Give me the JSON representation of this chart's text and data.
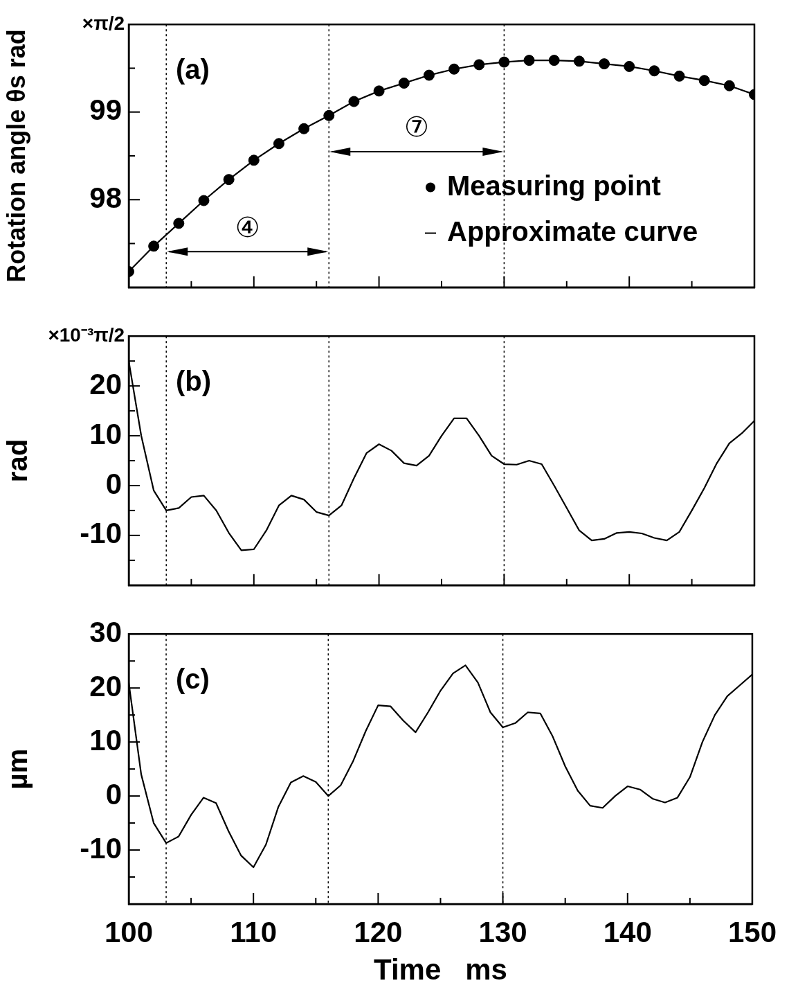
{
  "chart_data": [
    {
      "type": "line",
      "ylabel": "Rotation angle θs rad",
      "annotations": [
        "(a)",
        "×π/2",
        "④",
        "⑦"
      ],
      "series": [
        {
          "name": "Measuring point",
          "type": "scatter",
          "color": "#000000",
          "x": [
            100,
            102,
            104,
            106,
            108,
            110,
            112,
            114,
            116,
            118,
            120,
            122,
            124,
            126,
            128,
            130,
            132,
            134,
            136,
            138,
            140,
            142,
            144,
            146,
            148,
            150
          ],
          "values": [
            97.18,
            97.47,
            97.73,
            97.99,
            98.23,
            98.45,
            98.64,
            98.81,
            98.96,
            99.12,
            99.24,
            99.33,
            99.42,
            99.49,
            99.54,
            99.57,
            99.59,
            99.59,
            99.58,
            99.55,
            99.52,
            99.47,
            99.41,
            99.36,
            99.3,
            99.2
          ]
        },
        {
          "name": "Approximate curve",
          "color": "#000000",
          "x": [
            100,
            102,
            104,
            106,
            108,
            110,
            112,
            114,
            116,
            118,
            120,
            122,
            124,
            126,
            128,
            130,
            132,
            134,
            136,
            138,
            140,
            142,
            144,
            146,
            148,
            150
          ],
          "values": [
            97.18,
            97.47,
            97.73,
            97.99,
            98.23,
            98.45,
            98.64,
            98.81,
            98.96,
            99.12,
            99.24,
            99.33,
            99.42,
            99.49,
            99.54,
            99.57,
            99.59,
            99.59,
            99.58,
            99.55,
            99.52,
            99.47,
            99.41,
            99.36,
            99.3,
            99.2
          ]
        }
      ],
      "legend": "right",
      "grid": false,
      "tick_labels": "y",
      "xlim": [
        100,
        150
      ],
      "xticks": [
        100,
        {
          "value": 105,
          "label": null
        },
        110,
        {
          "value": 115,
          "label": null
        },
        120,
        {
          "value": 125,
          "label": null
        },
        130,
        {
          "value": 135,
          "label": null
        },
        140,
        {
          "value": 145,
          "label": null
        },
        150
      ],
      "ylim": [
        97,
        100
      ],
      "yticks": [
        {
          "value": 97.5,
          "label": null
        },
        98,
        {
          "value": 98.5,
          "label": null
        },
        99,
        {
          "value": 99.5,
          "label": null
        }
      ],
      "ref_lines": [
        {
          "axis": "x",
          "value": 103,
          "line_style": "dotted"
        },
        {
          "axis": "x",
          "value": 116,
          "line_style": "dotted"
        },
        {
          "axis": "x",
          "value": 130,
          "line_style": "dotted"
        }
      ]
    },
    {
      "type": "line",
      "ylabel": "rad",
      "annotations": [
        "(b)",
        "×10⁻³π/2"
      ],
      "x": [
        100,
        101,
        102,
        103,
        104,
        105,
        106,
        107,
        108,
        109,
        110,
        111,
        112,
        113,
        114,
        115,
        116,
        117,
        118,
        119,
        120,
        121,
        122,
        123,
        124,
        125,
        126,
        127,
        128,
        129,
        130,
        131,
        132,
        133,
        134,
        135,
        136,
        137,
        138,
        139,
        140,
        141,
        142,
        143,
        144,
        145,
        146,
        147,
        148,
        149,
        150
      ],
      "series": [
        {
          "color": "#000000",
          "values": [
            25,
            10,
            -1,
            -5,
            -4.5,
            -2.3,
            -2,
            -5,
            -9.5,
            -13,
            -12.8,
            -9,
            -4,
            -2,
            -2.8,
            -5.3,
            -6,
            -4,
            1.5,
            6.5,
            8.3,
            7,
            4.5,
            4,
            6,
            10,
            13.5,
            13.5,
            10,
            6,
            4.3,
            4.2,
            5,
            4.3,
            0,
            -4.5,
            -9,
            -11,
            -10.7,
            -9.5,
            -9.3,
            -9.6,
            -10.5,
            -11,
            -9.3,
            -5,
            -0.5,
            4.5,
            8.5,
            10.5,
            13
          ]
        }
      ],
      "grid": false,
      "tick_labels": "y",
      "xlim": [
        100,
        150
      ],
      "xticks": [
        100,
        {
          "value": 105,
          "label": null
        },
        110,
        {
          "value": 115,
          "label": null
        },
        120,
        {
          "value": 125,
          "label": null
        },
        130,
        {
          "value": 135,
          "label": null
        },
        140,
        {
          "value": 145,
          "label": null
        },
        150
      ],
      "ylim": [
        -20,
        30
      ],
      "yticks": [
        {
          "value": -15,
          "label": null
        },
        -10,
        {
          "value": -5,
          "label": null
        },
        0,
        {
          "value": 5,
          "label": null
        },
        10,
        {
          "value": 15,
          "label": null
        },
        20,
        {
          "value": 25,
          "label": null
        }
      ],
      "ref_lines": [
        {
          "axis": "x",
          "value": 103,
          "line_style": "dotted"
        },
        {
          "axis": "x",
          "value": 116,
          "line_style": "dotted"
        },
        {
          "axis": "x",
          "value": 130,
          "line_style": "dotted"
        }
      ]
    },
    {
      "type": "line",
      "ylabel": "µm",
      "xlabel": "Time   ms",
      "annotations": [
        "(c)"
      ],
      "x": [
        100,
        101,
        102,
        103,
        104,
        105,
        106,
        107,
        108,
        109,
        110,
        111,
        112,
        113,
        114,
        115,
        116,
        117,
        118,
        119,
        120,
        121,
        122,
        123,
        124,
        125,
        126,
        127,
        128,
        129,
        130,
        131,
        132,
        133,
        134,
        135,
        136,
        137,
        138,
        139,
        140,
        141,
        142,
        143,
        144,
        145,
        146,
        147,
        148,
        149,
        150
      ],
      "series": [
        {
          "color": "#000000",
          "values": [
            21,
            4,
            -5,
            -8.7,
            -7.5,
            -3.5,
            -0.3,
            -1.3,
            -6.5,
            -11,
            -13.2,
            -9,
            -2,
            2.5,
            3.7,
            2.6,
            0,
            2,
            6.5,
            12,
            16.8,
            16.6,
            14,
            11.8,
            15.5,
            19.5,
            22.7,
            24.2,
            21,
            15.5,
            12.7,
            13.5,
            15.5,
            15.3,
            11,
            5.5,
            1,
            -1.8,
            -2.2,
            0,
            1.8,
            1.2,
            -0.5,
            -1.2,
            -0.3,
            3.5,
            10,
            15,
            18.5,
            20.5,
            22.5
          ]
        }
      ],
      "grid": false,
      "xlim": [
        100,
        150
      ],
      "xticks": [
        100,
        {
          "value": 105,
          "label": null
        },
        110,
        {
          "value": 115,
          "label": null
        },
        120,
        {
          "value": 125,
          "label": null
        },
        130,
        {
          "value": 135,
          "label": null
        },
        140,
        {
          "value": 145,
          "label": null
        },
        150
      ],
      "ylim": [
        -20,
        30
      ],
      "yticks": [
        {
          "value": -15,
          "label": null
        },
        -10,
        {
          "value": -5,
          "label": null
        },
        0,
        {
          "value": 5,
          "label": null
        },
        10,
        {
          "value": 15,
          "label": null
        },
        20,
        {
          "value": 25,
          "label": null
        },
        30
      ],
      "ref_lines": [
        {
          "axis": "x",
          "value": 103,
          "line_style": "dotted"
        },
        {
          "axis": "x",
          "value": 116,
          "line_style": "dotted"
        },
        {
          "axis": "x",
          "value": 130,
          "line_style": "dotted"
        }
      ]
    }
  ]
}
